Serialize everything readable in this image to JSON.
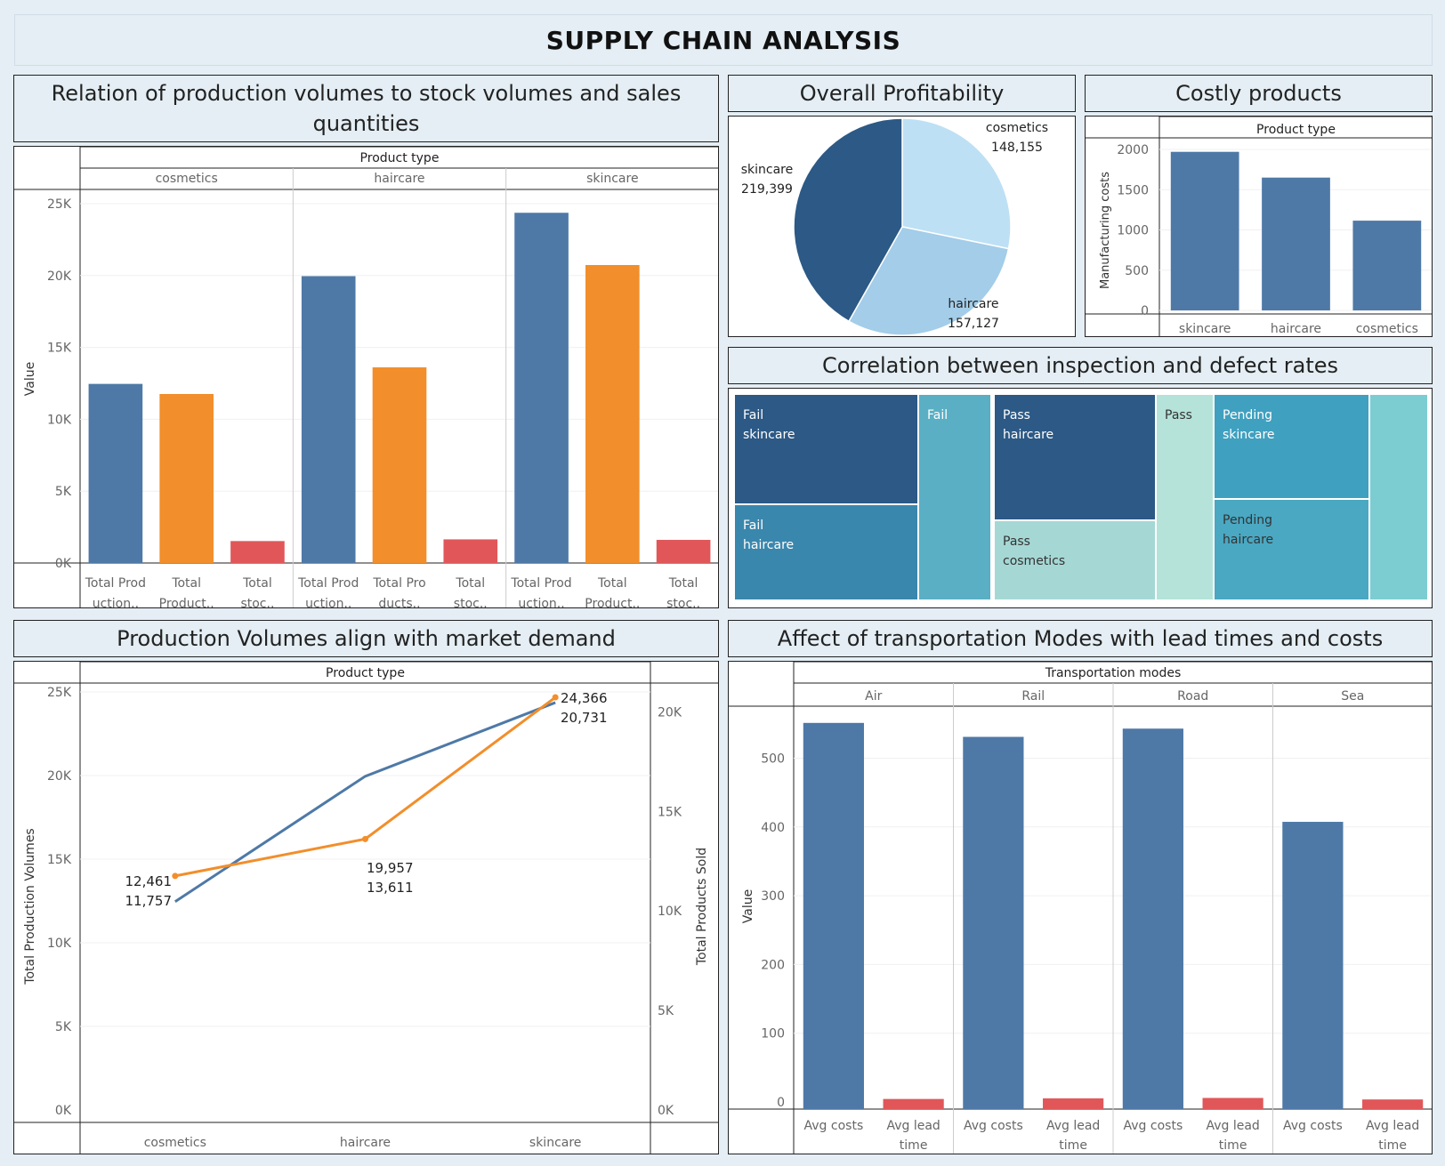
{
  "dashboard_title": "SUPPLY CHAIN ANALYSIS",
  "panels": {
    "relation": {
      "title": "Relation of production volumes to stock volumes and sales quantities"
    },
    "profit": {
      "title": "Overall Profitability"
    },
    "costly": {
      "title": "Costly products"
    },
    "correlation": {
      "title": "Correlation between inspection and defect rates"
    },
    "demand": {
      "title": "Production Volumes align with market demand"
    },
    "transport": {
      "title": "Affect of transportation Modes with lead times and costs"
    }
  },
  "colors": {
    "blue": "#4e79a7",
    "orange": "#f28e2b",
    "red": "#e15759",
    "navy": "#2c5985",
    "light_blue": "#a3cde9",
    "pale_blue": "#bde0f4"
  },
  "chart_data": [
    {
      "id": "relation",
      "type": "bar",
      "header": "Product type",
      "panels": [
        "cosmetics",
        "haircare",
        "skincare"
      ],
      "categories": [
        "Total Prod uction..",
        "Total Product..",
        "Total stoc.."
      ],
      "category_lines": {
        "cosmetics": [
          [
            "Total Prod",
            "uction.."
          ],
          [
            "Total",
            "Product.."
          ],
          [
            "Total",
            "stoc.."
          ]
        ],
        "haircare": [
          [
            "Total Prod",
            "uction.."
          ],
          [
            "Total Pro",
            "ducts.."
          ],
          [
            "Total",
            "stoc.."
          ]
        ],
        "skincare": [
          [
            "Total Prod",
            "uction.."
          ],
          [
            "Total",
            "Product.."
          ],
          [
            "Total",
            "stoc.."
          ]
        ]
      },
      "series_colors": [
        "#4e79a7",
        "#f28e2b",
        "#e15759"
      ],
      "values": {
        "cosmetics": [
          12461,
          11757,
          1525
        ],
        "haircare": [
          19957,
          13611,
          1644
        ],
        "skincare": [
          24366,
          20731,
          1608
        ]
      },
      "ylabel": "Value",
      "yticks": [
        "0K",
        "5K",
        "10K",
        "15K",
        "20K",
        "25K"
      ],
      "ylim": [
        0,
        25000
      ]
    },
    {
      "id": "profit",
      "type": "pie",
      "slices": [
        {
          "label": "cosmetics",
          "value": 148155,
          "value_label": "148,155",
          "color": "#bde0f4"
        },
        {
          "label": "haircare",
          "value": 157127,
          "value_label": "157,127",
          "color": "#a3cde9"
        },
        {
          "label": "skincare",
          "value": 219399,
          "value_label": "219,399",
          "color": "#2c5985"
        }
      ]
    },
    {
      "id": "costly",
      "type": "bar",
      "header": "Product type",
      "categories": [
        "skincare",
        "haircare",
        "cosmetics"
      ],
      "values": [
        1970,
        1650,
        1115
      ],
      "ylabel": "Manufacturing costs",
      "yticks": [
        "0",
        "500",
        "1000",
        "1500",
        "2000"
      ],
      "ylim": [
        0,
        2000
      ]
    },
    {
      "id": "correlation",
      "type": "heatmap",
      "cells": [
        {
          "lines": [
            "Fail",
            "skincare"
          ],
          "color": "#2c5985",
          "text": "#ffffff"
        },
        {
          "lines": [
            "Fail",
            "haircare"
          ],
          "color": "#3a87ad",
          "text": "#ffffff"
        },
        {
          "lines": [
            "Fail"
          ],
          "color": "#5aafc4",
          "text": "#ffffff"
        },
        {
          "lines": [
            "Pass",
            "haircare"
          ],
          "color": "#2c5985",
          "text": "#ffffff"
        },
        {
          "lines": [
            "Pass",
            "cosmetics"
          ],
          "color": "#a5d8d5",
          "text": "#333333"
        },
        {
          "lines": [
            "Pass"
          ],
          "color": "#b5e3d9",
          "text": "#333333"
        },
        {
          "lines": [
            "Pending",
            "skincare"
          ],
          "color": "#40a0bf",
          "text": "#ffffff"
        },
        {
          "lines": [
            "Pending",
            "haircare"
          ],
          "color": "#4aa8c2",
          "text": "#333333"
        },
        {
          "lines": [],
          "color": "#7ccdd1",
          "text": "#333333"
        }
      ]
    },
    {
      "id": "demand",
      "type": "line",
      "header": "Product type",
      "x": [
        "cosmetics",
        "haircare",
        "skincare"
      ],
      "series": [
        {
          "name": "Total Production Volumes",
          "values": [
            12461,
            19957,
            24366
          ],
          "labels": [
            "12,461",
            "19,957",
            "24,366"
          ],
          "color": "#4e79a7"
        },
        {
          "name": "Total Products Sold",
          "values": [
            11757,
            13611,
            20731
          ],
          "labels": [
            "11,757",
            "13,611",
            "20,731"
          ],
          "color": "#f28e2b"
        }
      ],
      "ylabel_left": "Total Production Volumes",
      "ylabel_right": "Total Products Sold",
      "yticks_left": [
        "0K",
        "5K",
        "10K",
        "15K",
        "20K",
        "25K"
      ],
      "yticks_right": [
        "0K",
        "5K",
        "10K",
        "15K",
        "20K"
      ],
      "ylim_left": [
        0,
        25000
      ],
      "ylim_right": [
        0,
        21000
      ]
    },
    {
      "id": "transport",
      "type": "bar",
      "header": "Transportation modes",
      "panels": [
        "Air",
        "Rail",
        "Road",
        "Sea"
      ],
      "categories": [
        "Avg costs",
        "Avg lead time"
      ],
      "category_lines": [
        [
          "Avg costs"
        ],
        [
          "Avg lead",
          "time"
        ]
      ],
      "series_colors": [
        "#4e79a7",
        "#e15759"
      ],
      "values": {
        "Air": [
          561.7,
          14.7
        ],
        "Rail": [
          541.4,
          15.6
        ],
        "Road": [
          553.4,
          16.2
        ],
        "Sea": [
          417.8,
          14.0
        ]
      },
      "ylabel": "Value",
      "yticks": [
        "0",
        "100",
        "200",
        "300",
        "400",
        "500"
      ],
      "ylim": [
        0,
        560
      ]
    }
  ]
}
